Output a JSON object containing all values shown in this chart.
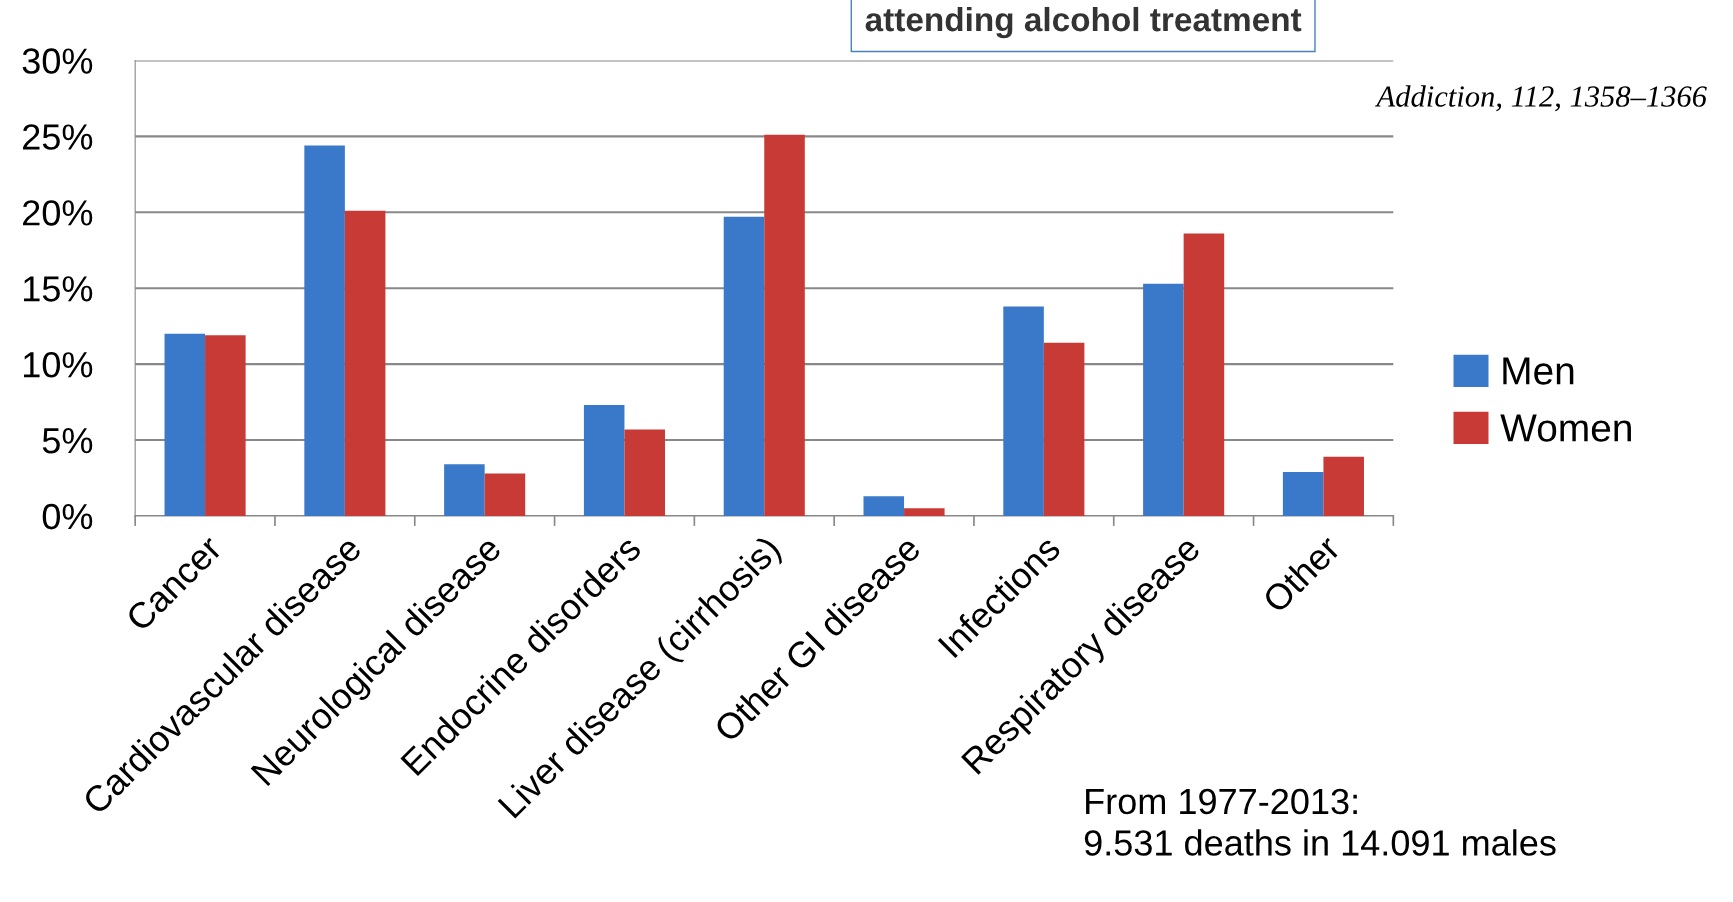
{
  "chart_data": {
    "type": "bar",
    "title": "attending alcohol treatment",
    "categories": [
      "Cancer",
      "Cardiovascular disease",
      "Neurological disease",
      "Endocrine disorders",
      "Liver disease (cirrhosis)",
      "Other GI disease",
      "Infections",
      "Respiratory disease",
      "Other"
    ],
    "series": [
      {
        "name": "Men",
        "color": "#3a78c9",
        "values": [
          12.0,
          24.4,
          3.4,
          7.3,
          19.7,
          1.3,
          13.8,
          15.3,
          2.9
        ]
      },
      {
        "name": "Women",
        "color": "#c83a36",
        "values": [
          11.9,
          20.1,
          2.8,
          5.7,
          25.1,
          0.5,
          11.4,
          18.6,
          3.9
        ]
      }
    ],
    "ylim": [
      0,
      30
    ],
    "yticks": [
      {
        "value": 0,
        "label": "0%"
      },
      {
        "value": 5,
        "label": "5%"
      },
      {
        "value": 10,
        "label": "10%"
      },
      {
        "value": 15,
        "label": "15%"
      },
      {
        "value": 20,
        "label": "20%"
      },
      {
        "value": 25,
        "label": "25%"
      },
      {
        "value": 30,
        "label": "30%"
      }
    ],
    "grid": "y",
    "legend": "right",
    "annotations": [
      "Addiction, 112, 1358–1366",
      "From 1977-2013:\n9.531 deaths in 14.091 males"
    ]
  }
}
